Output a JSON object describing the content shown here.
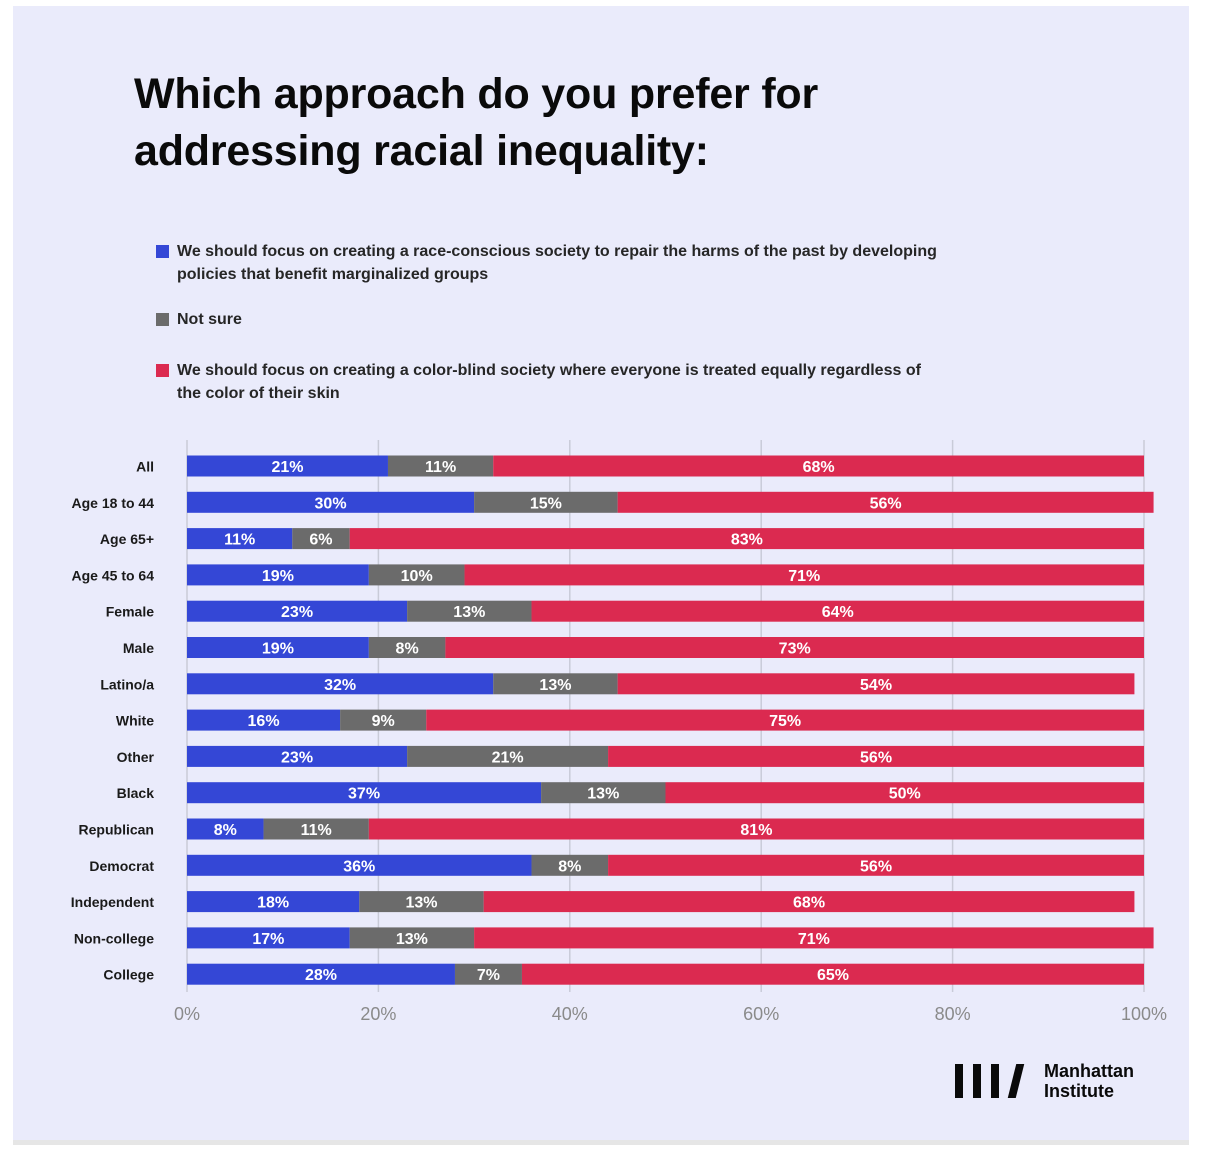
{
  "colors": {
    "race_conscious": "#3447d6",
    "not_sure": "#6b6b6b",
    "color_blind": "#db2a50",
    "grid": "#c9cbd8",
    "background": "#eaebfb"
  },
  "logo": {
    "line1": "Manhattan",
    "line2": "Institute"
  },
  "chart_data": {
    "type": "bar",
    "orientation": "horizontal",
    "stacked": true,
    "title": "Which approach do you prefer for addressing racial inequality:",
    "legend": {
      "placement": "top-left",
      "entries": [
        "We should focus on creating a race-conscious society to repair the harms of the past by developing policies that benefit marginalized groups",
        "Not sure",
        "We should focus on creating a color-blind society where everyone is treated equally regardless of the color of their skin"
      ]
    },
    "categories": [
      "All",
      "Age 18 to 44",
      "Age 65+",
      "Age 45 to 64",
      "Female",
      "Male",
      "Latino/a",
      "White",
      "Other",
      "Black",
      "Republican",
      "Democrat",
      "Independent",
      "Non-college",
      "College"
    ],
    "series": [
      {
        "name": "We should focus on creating a race-conscious society to repair the harms of the past by developing policies that benefit marginalized groups",
        "values": [
          21,
          30,
          11,
          19,
          23,
          19,
          32,
          16,
          23,
          37,
          8,
          36,
          18,
          17,
          28
        ]
      },
      {
        "name": "Not sure",
        "values": [
          11,
          15,
          6,
          10,
          13,
          8,
          13,
          9,
          21,
          13,
          11,
          8,
          13,
          13,
          7
        ]
      },
      {
        "name": "We should focus on creating a color-blind society where everyone is treated equally regardless of the color of their skin",
        "values": [
          68,
          56,
          83,
          71,
          64,
          73,
          54,
          75,
          56,
          50,
          81,
          56,
          68,
          71,
          65
        ]
      }
    ],
    "xlim": [
      0,
      100
    ],
    "xticks": [
      0,
      20,
      40,
      60,
      80,
      100
    ],
    "xtick_labels": [
      "0%",
      "20%",
      "40%",
      "60%",
      "80%",
      "100%"
    ],
    "grid": true,
    "data_labels": true
  }
}
